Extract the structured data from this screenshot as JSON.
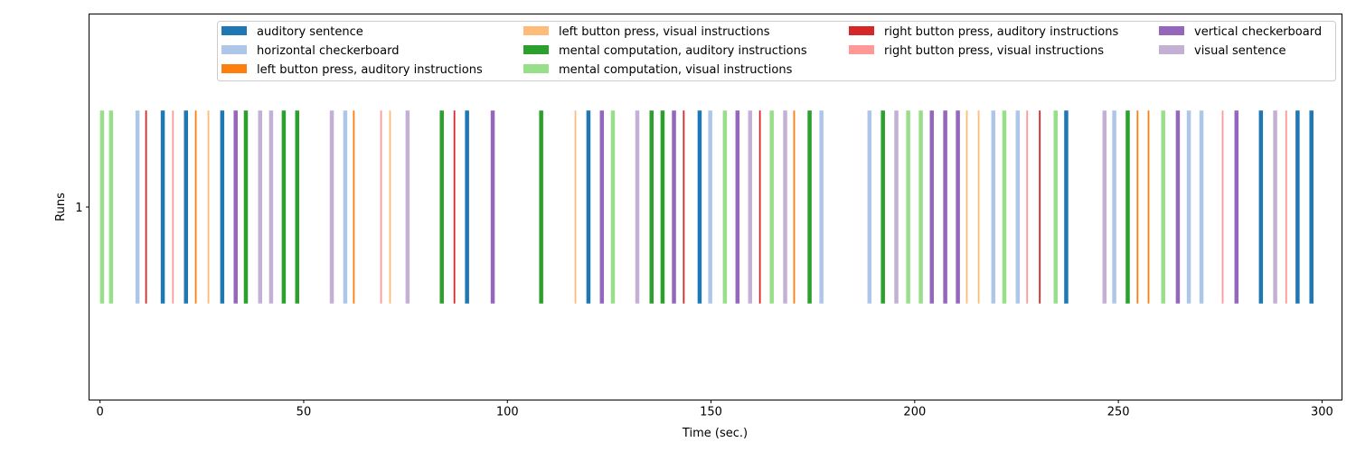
{
  "chart_data": {
    "type": "event-bars",
    "xlabel": "Time (sec.)",
    "ylabel": "Runs",
    "xlim": [
      -2.7,
      304.9
    ],
    "ylim": [
      0,
      2
    ],
    "xticks": [
      0,
      50,
      100,
      150,
      200,
      250,
      300
    ],
    "yticks": [
      1
    ],
    "ytick_labels": [
      "1"
    ],
    "bar_y_range": [
      0.5,
      1.5
    ],
    "grid": false,
    "legend_placement": "top-right",
    "legend_columns": 4,
    "series": [
      {
        "name": "auditory sentence",
        "color": "#1f77b4",
        "duration": 1.0,
        "onsets": [
          14.9,
          20.6,
          29.5,
          89.6,
          119.4,
          146.7,
          236.7,
          284.5,
          293.5,
          296.9
        ]
      },
      {
        "name": "horizontal checkerboard",
        "color": "#aec7e8",
        "duration": 1.0,
        "onsets": [
          8.7,
          59.7,
          149.3,
          176.6,
          188.4,
          218.8,
          224.8,
          248.5,
          266.8,
          269.9
        ]
      },
      {
        "name": "left button press, auditory instructions",
        "color": "#ff7f0e",
        "duration": 0.4,
        "onsets": [
          23.3,
          62.1,
          170.2,
          254.5,
          257.2
        ]
      },
      {
        "name": "left button press, visual instructions",
        "color": "#ffbb78",
        "duration": 0.4,
        "onsets": [
          26.4,
          71.0,
          116.5,
          212.6,
          215.5
        ]
      },
      {
        "name": "mental computation, auditory instructions",
        "color": "#2ca02c",
        "duration": 1.0,
        "onsets": [
          35.3,
          44.6,
          47.9,
          83.4,
          107.8,
          134.9,
          137.6,
          173.7,
          191.7,
          251.8
        ]
      },
      {
        "name": "mental computation, visual instructions",
        "color": "#98df8a",
        "duration": 1.0,
        "onsets": [
          0.0,
          2.2,
          125.4,
          152.9,
          164.4,
          197.9,
          201.0,
          221.5,
          234.1,
          260.5
        ]
      },
      {
        "name": "right button press, auditory instructions",
        "color": "#d62728",
        "duration": 0.4,
        "onsets": [
          11.1,
          86.8,
          143.1,
          161.8,
          230.5
        ]
      },
      {
        "name": "right button press, visual instructions",
        "color": "#ff9896",
        "duration": 0.4,
        "onsets": [
          17.7,
          68.8,
          227.4,
          275.4,
          291.0
        ]
      },
      {
        "name": "vertical checkerboard",
        "color": "#9467bd",
        "duration": 1.0,
        "onsets": [
          32.8,
          95.9,
          122.7,
          140.4,
          156.0,
          203.7,
          207.0,
          210.1,
          264.1,
          278.5
        ]
      },
      {
        "name": "visual sentence",
        "color": "#c5b0d5",
        "duration": 1.0,
        "onsets": [
          38.8,
          41.5,
          56.4,
          75.0,
          131.4,
          159.1,
          167.7,
          195.0,
          246.1,
          288.0
        ]
      }
    ]
  }
}
